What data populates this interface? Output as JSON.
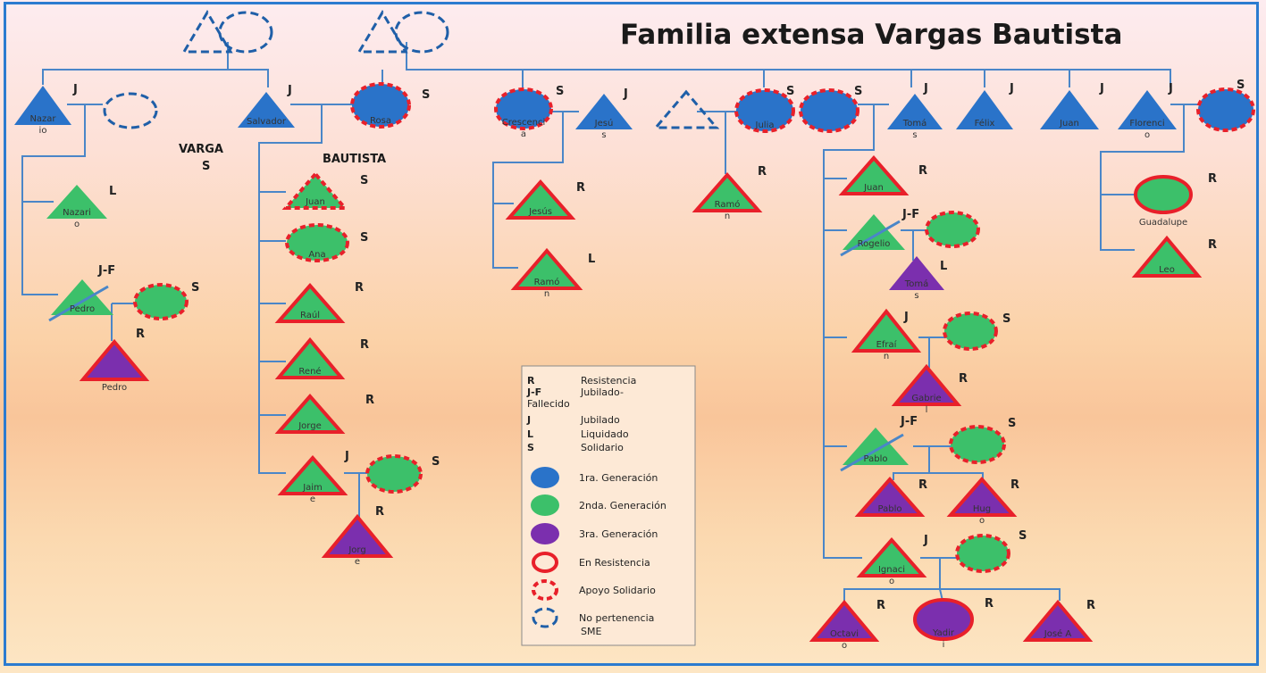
{
  "title": "Familia extensa Vargas Bautista",
  "family_labels": {
    "vargas_line1": "VARGA",
    "vargas_line2": "S",
    "bautista": "BAUTISTA"
  },
  "colors": {
    "gen1": "#2a73c9",
    "gen2": "#3cc06a",
    "gen3": "#7b2fae",
    "resistance": "#e8202a",
    "no_membership": "#1f5fa8",
    "line": "#4a86c8"
  },
  "people": {
    "nazario": {
      "name": [
        "Nazar",
        "io"
      ],
      "code": "J"
    },
    "salvador": {
      "name": [
        "Salvador"
      ],
      "code": "J"
    },
    "rosa": {
      "name": [
        "Rosa"
      ],
      "code": "S"
    },
    "crescencia": {
      "name": [
        "Crescenci",
        "a"
      ],
      "code": "S"
    },
    "jesus_h": {
      "name": [
        "Jesú",
        "s"
      ],
      "code": "J"
    },
    "julia": {
      "name": [
        "Julia"
      ],
      "code": "S"
    },
    "s_wife": {
      "name": [
        ""
      ],
      "code": "S"
    },
    "tomas": {
      "name": [
        "Tomá",
        "s"
      ],
      "code": "J"
    },
    "felix": {
      "name": [
        "Félix"
      ],
      "code": "J"
    },
    "juan_g1": {
      "name": [
        "Juan"
      ],
      "code": "J"
    },
    "florencio": {
      "name": [
        "Florenci",
        "o"
      ],
      "code": "J"
    },
    "florencio_wife": {
      "name": [
        ""
      ],
      "code": "S"
    },
    "nazar_child": {
      "name": [
        "Nazari",
        "o"
      ],
      "code": "L"
    },
    "pedro_g2": {
      "name": [
        "Pedro"
      ],
      "code": "J-F"
    },
    "pedro_wife": {
      "name": [
        ""
      ],
      "code": "S"
    },
    "pedro_g3": {
      "name": [
        "Pedro"
      ],
      "code": "R"
    },
    "juan_sb": {
      "name": [
        "Juan"
      ],
      "code": "S"
    },
    "ana": {
      "name": [
        "Ana"
      ],
      "code": "S"
    },
    "raul": {
      "name": [
        "Raúl"
      ],
      "code": "R"
    },
    "rene": {
      "name": [
        "René"
      ],
      "code": "R"
    },
    "jorge_g2": {
      "name": [
        "Jorge"
      ],
      "code": "R"
    },
    "jaime": {
      "name": [
        "Jaim",
        "e"
      ],
      "code": "J"
    },
    "jaime_wife": {
      "name": [
        ""
      ],
      "code": "S"
    },
    "jorge_g3": {
      "name": [
        "Jorg",
        "e"
      ],
      "code": "R"
    },
    "jesus_g2": {
      "name": [
        "Jesús"
      ],
      "code": "R"
    },
    "ramon": {
      "name": [
        "Ramó",
        "n"
      ],
      "code": "L"
    },
    "ramon_julia": {
      "name": [
        "Ramó",
        "n"
      ],
      "code": "R"
    },
    "juan_t": {
      "name": [
        "Juan"
      ],
      "code": "R"
    },
    "rogelio": {
      "name": [
        "Rogelio"
      ],
      "code": "J-F"
    },
    "rogelio_wife": {
      "name": [
        ""
      ],
      "code": ""
    },
    "tomas_g3": {
      "name": [
        "Tomá",
        "s"
      ],
      "code": "L"
    },
    "efrain": {
      "name": [
        "Efraí",
        "n"
      ],
      "code": "J"
    },
    "efrain_wife": {
      "name": [
        ""
      ],
      "code": "S"
    },
    "gabriel": {
      "name": [
        "Gabrie",
        "l"
      ],
      "code": "R"
    },
    "pablo_g2": {
      "name": [
        "Pablo"
      ],
      "code": "J-F"
    },
    "pablo_wife": {
      "name": [
        ""
      ],
      "code": "S"
    },
    "pablo_g3": {
      "name": [
        "Pablo"
      ],
      "code": "R"
    },
    "hugo": {
      "name": [
        "Hug",
        "o"
      ],
      "code": "R"
    },
    "ignacio": {
      "name": [
        "Ignaci",
        "o"
      ],
      "code": "J"
    },
    "ignacio_wife": {
      "name": [
        ""
      ],
      "code": "S"
    },
    "octavio": {
      "name": [
        "Octavi",
        "o"
      ],
      "code": "R"
    },
    "yadira": {
      "name": [
        "Yadir",
        "i"
      ],
      "code": "R"
    },
    "jose_a": {
      "name": [
        "José A"
      ],
      "code": "R"
    },
    "guadalupe": {
      "name": [
        "Guadalupe"
      ],
      "code": "R"
    },
    "leo": {
      "name": [
        "Leo"
      ],
      "code": "R"
    }
  },
  "legend": {
    "codes": [
      {
        "code": "R",
        "text": "Resistencia"
      },
      {
        "code": "J-F",
        "text": "Jubilado-"
      },
      {
        "code": "",
        "text": "Fallecido"
      },
      {
        "code": "J",
        "text": "Jubilado"
      },
      {
        "code": "L",
        "text": "Liquidado"
      },
      {
        "code": "S",
        "text": "Solidario"
      }
    ],
    "symbols": [
      {
        "text": "1ra. Generación"
      },
      {
        "text": "2nda. Generación"
      },
      {
        "text": "3ra. Generación"
      },
      {
        "text": "En Resistencia"
      },
      {
        "text": "Apoyo Solidario"
      },
      {
        "text": "No pertenencia"
      },
      {
        "text": "SME"
      }
    ]
  }
}
